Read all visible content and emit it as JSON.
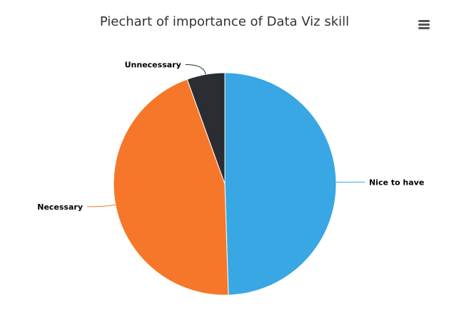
{
  "chart_data": {
    "type": "pie",
    "title": "Piechart of importance of Data Viz skill",
    "categories": [
      "Nice to have",
      "Necessary",
      "Unnecessary"
    ],
    "values": [
      49.5,
      45.0,
      5.5
    ],
    "colors": [
      "#38a7e4",
      "#f67729",
      "#2a2d31"
    ],
    "start_angle_deg": 0,
    "direction": "clockwise",
    "legend": "none",
    "data_labels": true
  },
  "toolbar": {
    "menu_icon": "hamburger-menu-icon"
  }
}
